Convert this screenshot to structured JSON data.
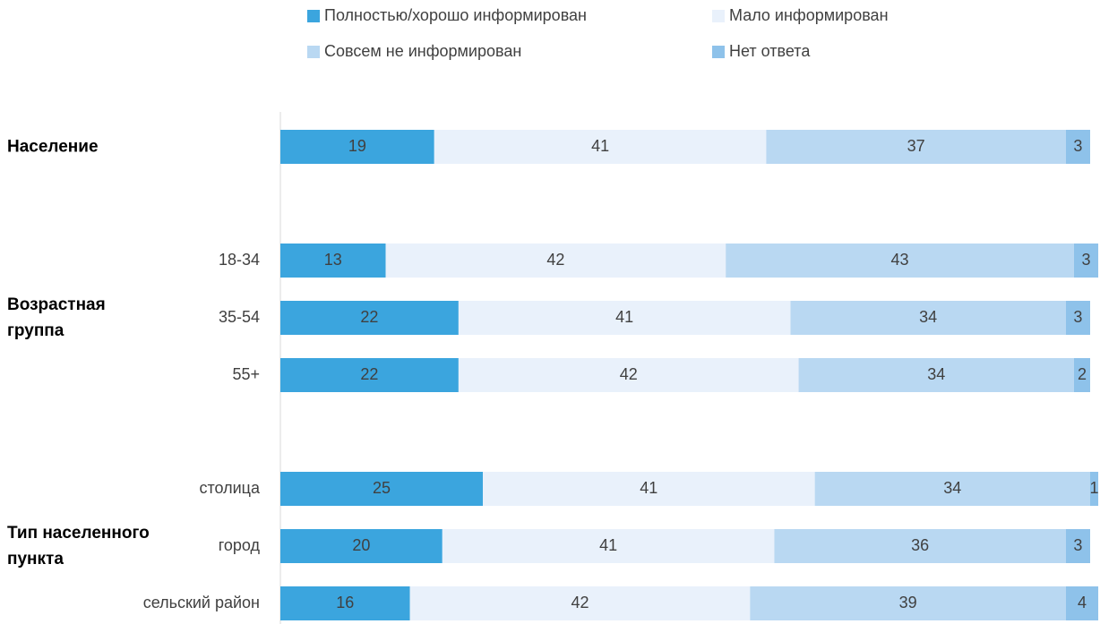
{
  "chart_data": {
    "type": "stacked_bar_horizontal",
    "group_labels": [
      "Население",
      "Возрастная группа",
      "Тип населенного пункта"
    ],
    "categories": [
      null,
      "18-34",
      "35-54",
      "55+",
      "столица",
      "город",
      "сельский район"
    ],
    "series": [
      {
        "name": "Полностью/хорошо информирован",
        "color": "#3ba5de",
        "values": [
          19,
          13,
          22,
          22,
          25,
          20,
          16
        ]
      },
      {
        "name": "Мало информирован",
        "color": "#e9f1fb",
        "values": [
          41,
          42,
          41,
          42,
          41,
          41,
          42
        ]
      },
      {
        "name": "Совсем не информирован",
        "color": "#b9d8f2",
        "values": [
          37,
          43,
          34,
          34,
          34,
          36,
          39
        ]
      },
      {
        "name": "Нет ответа",
        "color": "#8ec2ea",
        "values": [
          3,
          3,
          3,
          2,
          1,
          3,
          4
        ]
      }
    ],
    "xlim": [
      0,
      100
    ]
  }
}
